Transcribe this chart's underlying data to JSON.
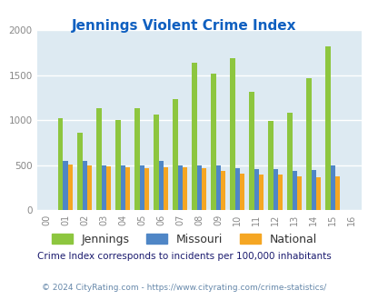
{
  "title": "Jennings Violent Crime Index",
  "title_color": "#1060c0",
  "years_all": [
    "00",
    "01",
    "02",
    "03",
    "04",
    "05",
    "06",
    "07",
    "08",
    "09",
    "10",
    "11",
    "12",
    "13",
    "14",
    "15",
    "16"
  ],
  "plot_years": [
    "01",
    "02",
    "03",
    "04",
    "05",
    "06",
    "07",
    "08",
    "09",
    "10",
    "11",
    "12",
    "13",
    "14",
    "15"
  ],
  "jennings": [
    1020,
    860,
    1130,
    1000,
    1130,
    1060,
    1230,
    1640,
    1520,
    1690,
    1310,
    985,
    1080,
    1460,
    1820
  ],
  "missouri": [
    545,
    545,
    490,
    490,
    490,
    545,
    495,
    500,
    495,
    460,
    450,
    450,
    430,
    445,
    500
  ],
  "national": [
    505,
    495,
    485,
    470,
    465,
    475,
    470,
    460,
    430,
    405,
    390,
    390,
    370,
    365,
    375
  ],
  "jennings_color": "#8dc63f",
  "missouri_color": "#4f86c6",
  "national_color": "#f5a623",
  "bg_color": "#ddeaf2",
  "ylim": [
    0,
    2000
  ],
  "yticks": [
    0,
    500,
    1000,
    1500,
    2000
  ],
  "bar_width": 0.25,
  "note": "Crime Index corresponds to incidents per 100,000 inhabitants",
  "note_color": "#1a1a6e",
  "footer": "© 2024 CityRating.com - https://www.cityrating.com/crime-statistics/",
  "footer_color": "#6688aa",
  "legend_labels": [
    "Jennings",
    "Missouri",
    "National"
  ]
}
